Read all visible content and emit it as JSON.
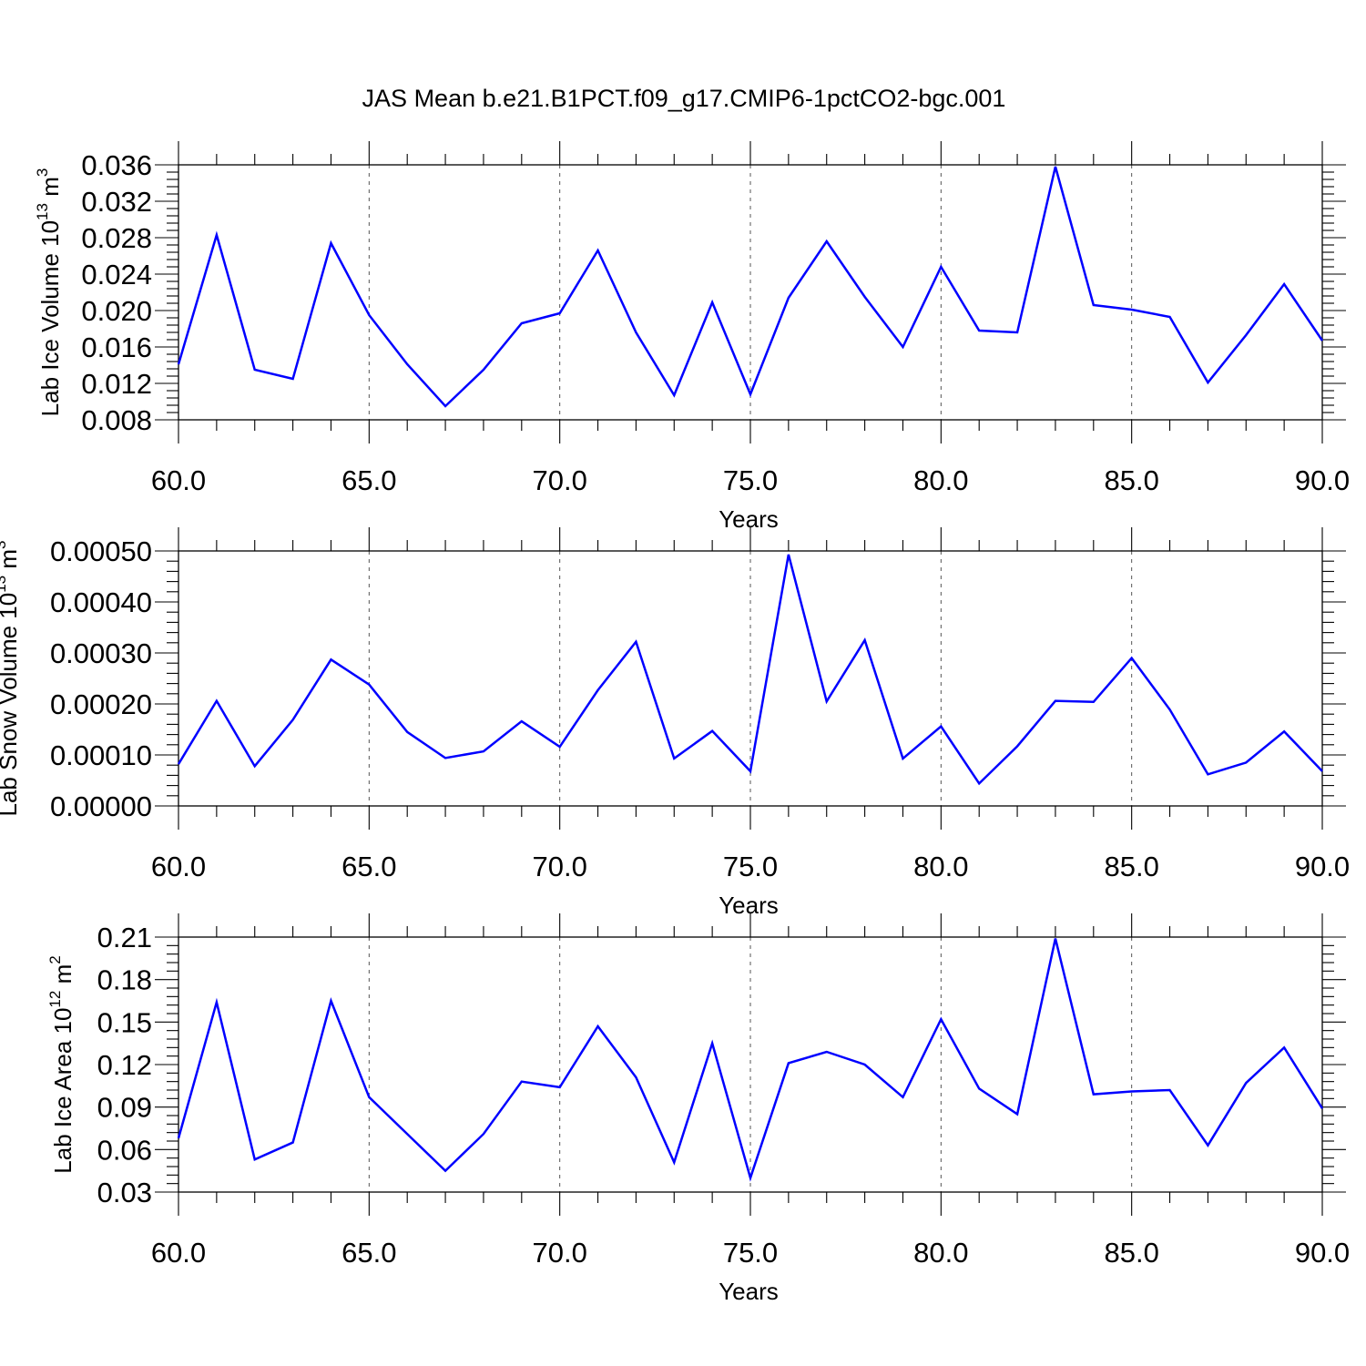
{
  "title": "JAS Mean b.e21.B1PCT.f09_g17.CMIP6-1pctCO2-bgc.001",
  "colors": {
    "series": "#0000ff",
    "axis": "#000000",
    "grid": "#555555"
  },
  "chart_data": [
    {
      "type": "line",
      "xlabel": "Years",
      "ylabel": {
        "text": "Lab Ice Volume 10",
        "exp": "13",
        "unit": " m",
        "unit_exp": "3"
      },
      "xlim": [
        60,
        90
      ],
      "ylim": [
        0.008,
        0.036
      ],
      "xticks": [
        "60.0",
        "65.0",
        "70.0",
        "75.0",
        "80.0",
        "85.0",
        "90.0"
      ],
      "yticks": [
        "0.008",
        "0.012",
        "0.016",
        "0.020",
        "0.024",
        "0.028",
        "0.032",
        "0.036"
      ],
      "grid": "vertical dashed",
      "x": [
        60,
        61,
        62,
        63,
        64,
        65,
        66,
        67,
        68,
        69,
        70,
        71,
        72,
        73,
        74,
        75,
        76,
        77,
        78,
        79,
        80,
        81,
        82,
        83,
        84,
        85,
        86,
        87,
        88,
        89,
        90
      ],
      "series": [
        {
          "values": [
            0.0141,
            0.0283,
            0.0135,
            0.0125,
            0.0274,
            0.0195,
            0.0141,
            0.0095,
            0.0135,
            0.0186,
            0.0197,
            0.0266,
            0.0176,
            0.0107,
            0.0209,
            0.0108,
            0.0214,
            0.0276,
            0.0215,
            0.016,
            0.0248,
            0.0178,
            0.0176,
            0.0358,
            0.0206,
            0.0201,
            0.0193,
            0.0121,
            0.0173,
            0.0229,
            0.0167
          ]
        }
      ]
    },
    {
      "type": "line",
      "xlabel": "Years",
      "ylabel": {
        "text": "Lab Snow Volume 10",
        "exp": "13",
        "unit": " m",
        "unit_exp": "3"
      },
      "xlim": [
        60,
        90
      ],
      "ylim": [
        0.0,
        0.0005
      ],
      "xticks": [
        "60.0",
        "65.0",
        "70.0",
        "75.0",
        "80.0",
        "85.0",
        "90.0"
      ],
      "yticks": [
        "0.00000",
        "0.00010",
        "0.00020",
        "0.00030",
        "0.00040",
        "0.00050"
      ],
      "grid": "vertical dashed",
      "x": [
        60,
        61,
        62,
        63,
        64,
        65,
        66,
        67,
        68,
        69,
        70,
        71,
        72,
        73,
        74,
        75,
        76,
        77,
        78,
        79,
        80,
        81,
        82,
        83,
        84,
        85,
        86,
        87,
        88,
        89,
        90
      ],
      "series": [
        {
          "values": [
            8.2e-05,
            0.000206,
            7.8e-05,
            0.000169,
            0.000287,
            0.000238,
            0.000145,
            9.4e-05,
            0.000107,
            0.000166,
            0.000116,
            0.000227,
            0.000322,
            9.3e-05,
            0.000147,
            6.8e-05,
            0.000493,
            0.000205,
            0.000325,
            9.3e-05,
            0.000156,
            4.4e-05,
            0.000117,
            0.000206,
            0.000204,
            0.00029,
            0.000189,
            6.2e-05,
            8.5e-05,
            0.000146,
            6.8e-05
          ]
        }
      ]
    },
    {
      "type": "line",
      "xlabel": "Years",
      "ylabel": {
        "text": "Lab Ice Area 10",
        "exp": "12",
        "unit": " m",
        "unit_exp": "2"
      },
      "xlim": [
        60,
        90
      ],
      "ylim": [
        0.03,
        0.21
      ],
      "xticks": [
        "60.0",
        "65.0",
        "70.0",
        "75.0",
        "80.0",
        "85.0",
        "90.0"
      ],
      "yticks": [
        "0.03",
        "0.06",
        "0.09",
        "0.12",
        "0.15",
        "0.18",
        "0.21"
      ],
      "grid": "vertical dashed",
      "x": [
        60,
        61,
        62,
        63,
        64,
        65,
        66,
        67,
        68,
        69,
        70,
        71,
        72,
        73,
        74,
        75,
        76,
        77,
        78,
        79,
        80,
        81,
        82,
        83,
        84,
        85,
        86,
        87,
        88,
        89,
        90
      ],
      "series": [
        {
          "values": [
            0.068,
            0.164,
            0.053,
            0.065,
            0.165,
            0.097,
            0.071,
            0.045,
            0.071,
            0.108,
            0.104,
            0.147,
            0.111,
            0.051,
            0.135,
            0.04,
            0.121,
            0.129,
            0.12,
            0.097,
            0.152,
            0.103,
            0.085,
            0.209,
            0.099,
            0.101,
            0.102,
            0.063,
            0.107,
            0.132,
            0.089
          ]
        }
      ]
    }
  ]
}
